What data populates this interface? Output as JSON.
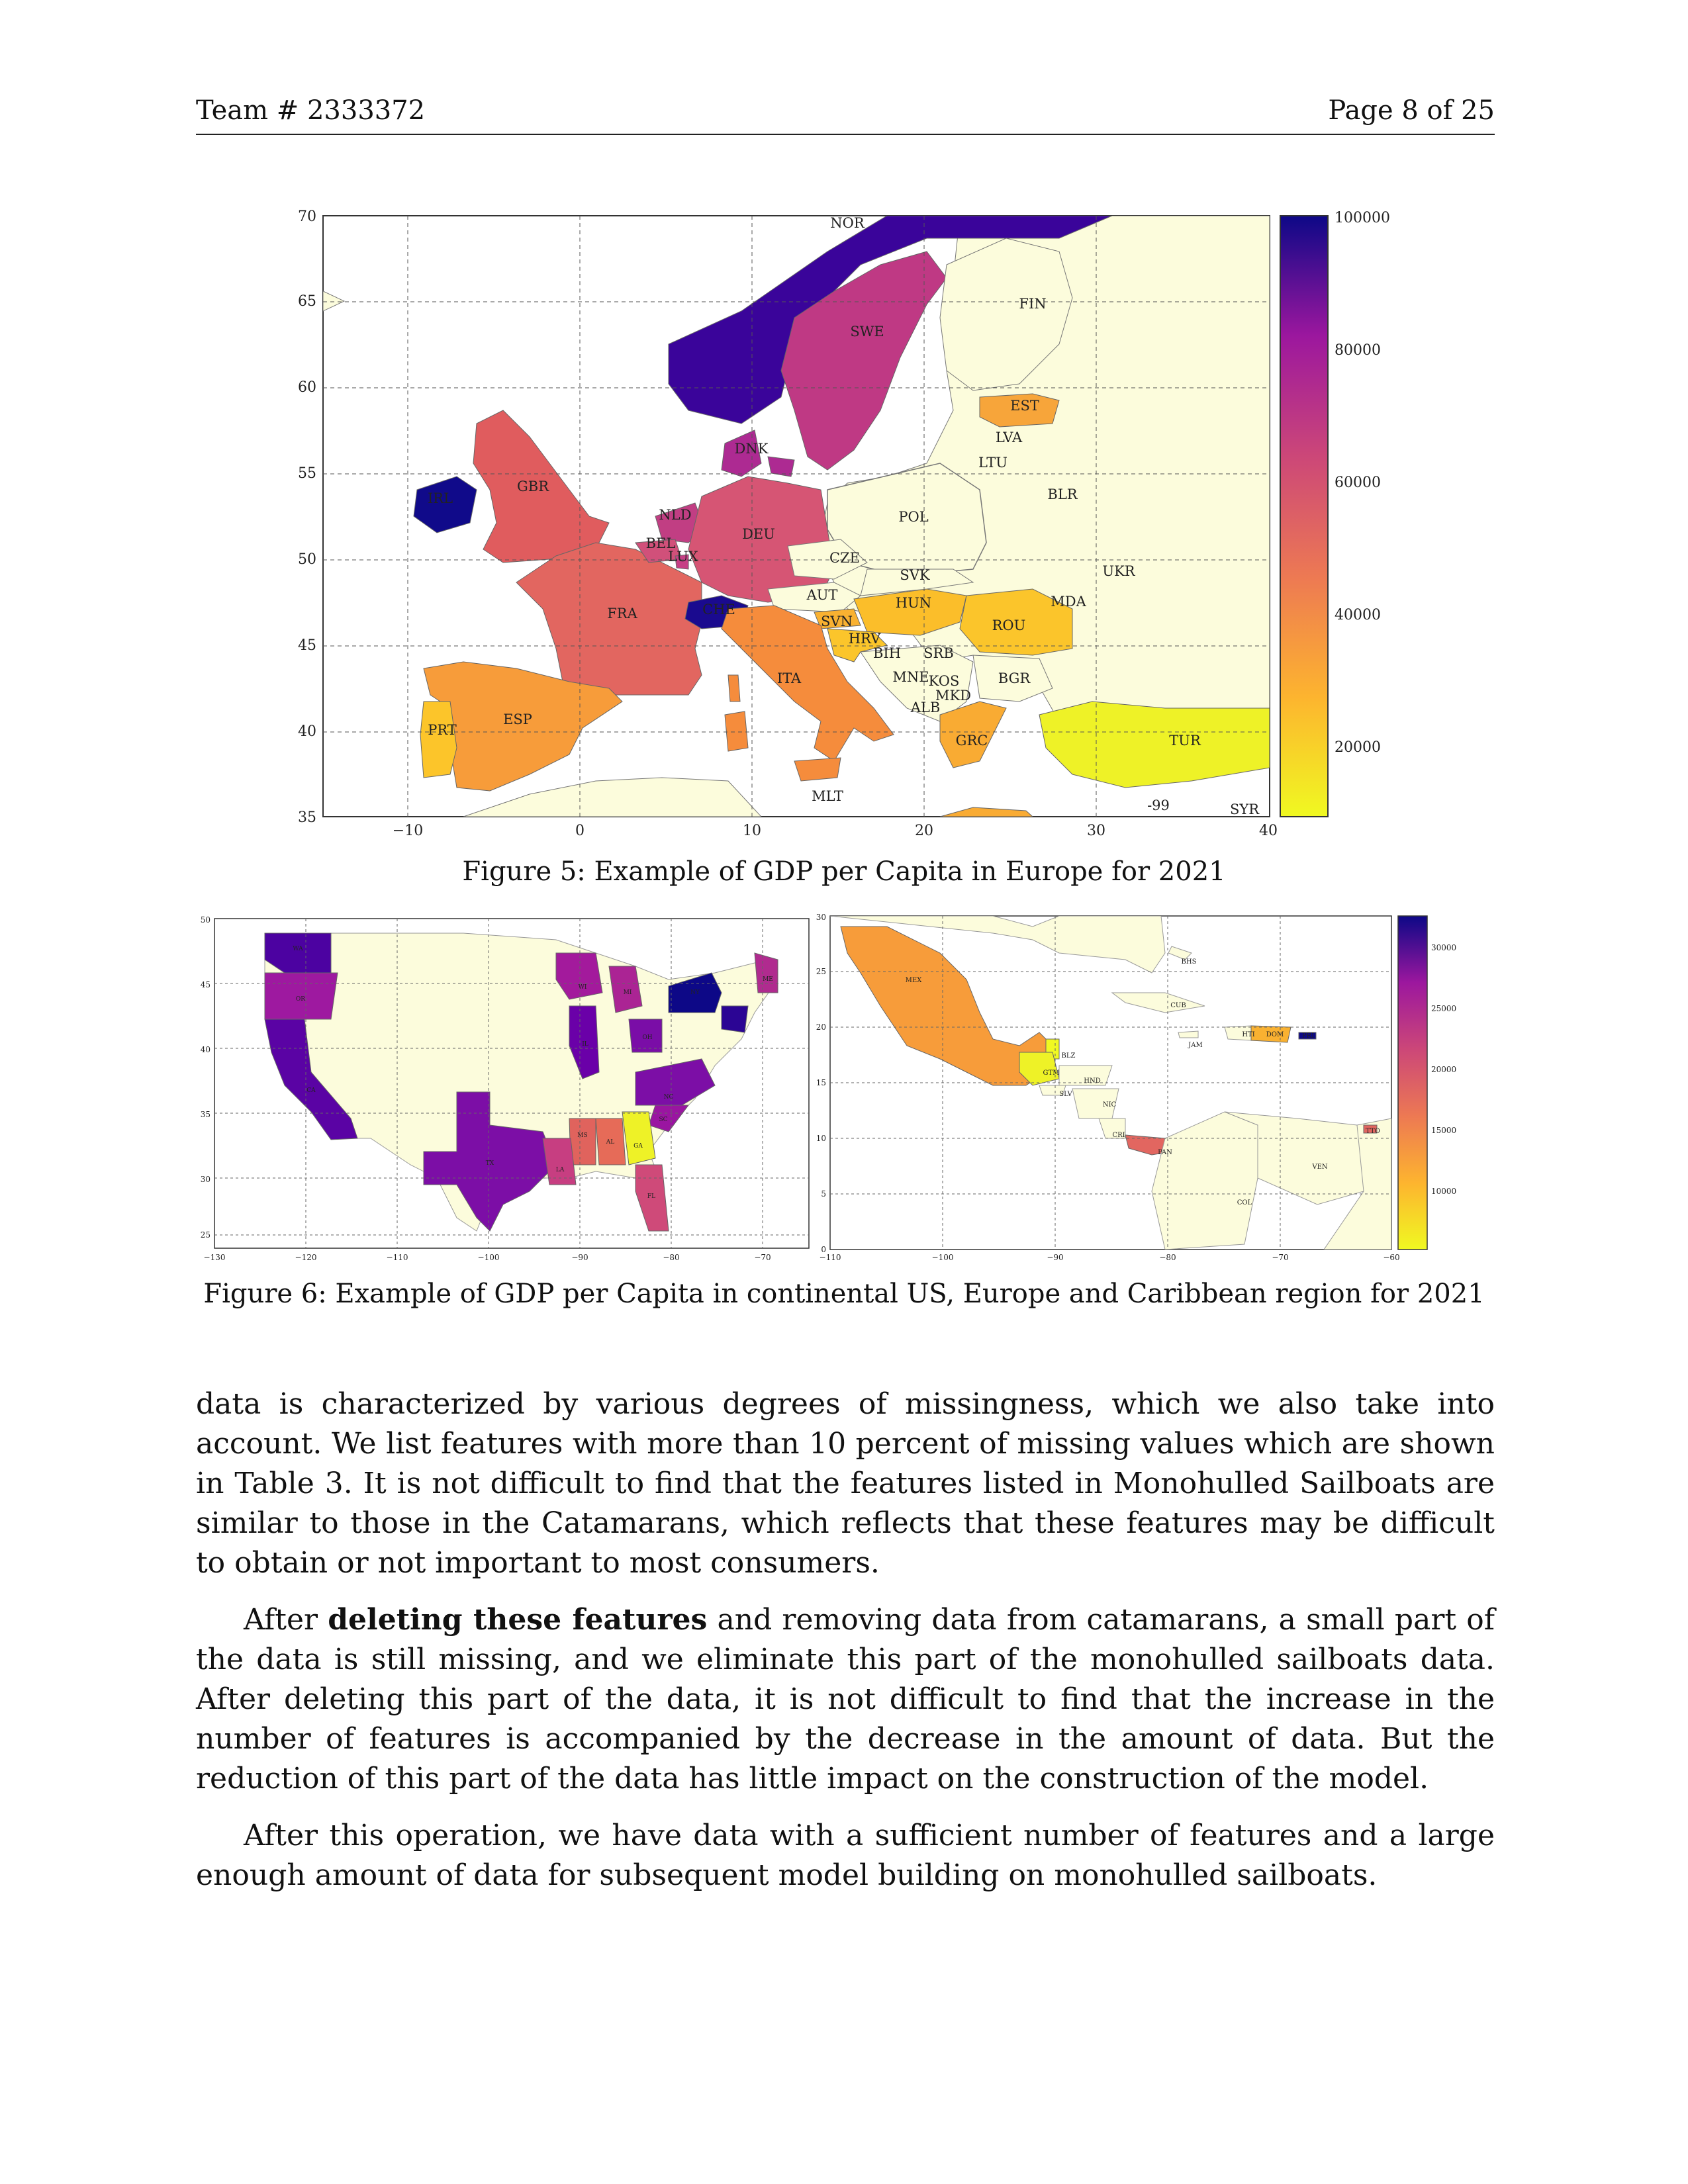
{
  "header": {
    "team": "Team # 2333372",
    "page": "Page 8 of 25"
  },
  "figure5": {
    "caption": "Figure 5: Example of GDP per Capita in Europe for 2021",
    "xticks": [
      "−10",
      "0",
      "10",
      "20",
      "30",
      "40"
    ],
    "yticks": [
      "35",
      "40",
      "45",
      "50",
      "55",
      "60",
      "65",
      "70"
    ],
    "colorbar_ticks": [
      "20000",
      "40000",
      "60000",
      "80000",
      "100000"
    ],
    "labels": [
      "NOR",
      "FIN",
      "SWE",
      "EST",
      "LVA",
      "LTU",
      "DNK",
      "BLR",
      "IRL",
      "GBR",
      "NLD",
      "DEU",
      "POL",
      "BEL",
      "LUX",
      "CZE",
      "UKR",
      "SVK",
      "AUT",
      "MDA",
      "FRA",
      "CHE",
      "HUN",
      "SVN",
      "ROU",
      "HRV",
      "BIH",
      "SRB",
      "MNE",
      "KOS",
      "MKD",
      "ITA",
      "BGR",
      "ALB",
      "ESP",
      "PRT",
      "GRC",
      "TUR",
      "MLT",
      "-99",
      "SYR"
    ]
  },
  "chart_data": [
    {
      "type": "heatmap",
      "title": "",
      "colorbar": {
        "min": 10000,
        "max": 100000,
        "ticks": [
          20000,
          40000,
          60000,
          80000,
          100000
        ]
      },
      "xlim": [
        -15,
        40
      ],
      "ylim": [
        35,
        70
      ],
      "categories": [
        "NOR",
        "FIN",
        "SWE",
        "EST",
        "LVA",
        "LTU",
        "DNK",
        "BLR",
        "IRL",
        "GBR",
        "NLD",
        "DEU",
        "POL",
        "BEL",
        "LUX",
        "CZE",
        "UKR",
        "SVK",
        "AUT",
        "MDA",
        "FRA",
        "CHE",
        "HUN",
        "SVN",
        "ROU",
        "HRV",
        "BIH",
        "SRB",
        "MNE",
        "KOS",
        "MKD",
        "ITA",
        "BGR",
        "ALB",
        "ESP",
        "PRT",
        "GRC",
        "TUR",
        "MLT",
        "SYR"
      ],
      "grid": true
    },
    {
      "type": "heatmap",
      "colorbar": {
        "min": 5000,
        "max": 33000,
        "ticks": [
          10000,
          15000,
          20000,
          25000,
          30000
        ]
      },
      "xlim": [
        -130,
        -60
      ],
      "ylim": [
        24,
        50
      ],
      "xticks": [
        "−130",
        "−120",
        "−110",
        "−100",
        "−90",
        "−80",
        "−70"
      ],
      "yticks": [
        "25",
        "30",
        "35",
        "40",
        "45",
        "50"
      ],
      "categories": [
        "WA",
        "OR",
        "CA",
        "TX",
        "WI",
        "MI",
        "IL",
        "OH",
        "NY",
        "ME",
        "NC",
        "SC",
        "GA",
        "AL",
        "MS",
        "LA",
        "FL"
      ],
      "grid": true
    },
    {
      "type": "heatmap",
      "xlim": [
        -110,
        -60
      ],
      "ylim": [
        0,
        30
      ],
      "xticks": [
        "−110",
        "−100",
        "−90",
        "−80",
        "−70",
        "−60"
      ],
      "yticks": [
        "0",
        "5",
        "10",
        "15",
        "20",
        "25",
        "30"
      ],
      "categories": [
        "MEX",
        "BHS",
        "CUB",
        "HTI",
        "DOM",
        "JAM",
        "BLZ",
        "GTM",
        "HND",
        "SLV",
        "NIC",
        "CRI",
        "PAN",
        "TTO",
        "VEN",
        "COL",
        "PRI"
      ],
      "grid": true
    }
  ],
  "figure6": {
    "caption": "Figure 6: Example of GDP per Capita in continental US, Europe and Caribbean region for 2021",
    "us_xticks": [
      "−130",
      "−120",
      "−110",
      "−100",
      "−90",
      "−80",
      "−70"
    ],
    "us_yticks": [
      "25",
      "30",
      "35",
      "40",
      "45",
      "50"
    ],
    "car_xticks": [
      "−110",
      "−100",
      "−90",
      "−80",
      "−70",
      "−60"
    ],
    "car_yticks": [
      "0",
      "5",
      "10",
      "15",
      "20",
      "25",
      "30"
    ],
    "colorbar_ticks": [
      "10000",
      "15000",
      "20000",
      "25000",
      "30000"
    ]
  },
  "body": {
    "p1": "data is characterized by various degrees of missingness, which we also take into account. We list features with more than 10 percent of missing values which are shown in Table 3. It is not difficult to find that the features listed in Monohulled Sailboats are similar to those in the Catamarans, which reflects that these features may be difficult to obtain or not important to most consumers.",
    "p2_pre": "After ",
    "p2_bold": "deleting these features",
    "p2_post": " and removing data from catamarans, a small part of the data is still missing, and we eliminate this part of the monohulled sailboats data. After deleting this part of the data, it is not difficult to find that the increase in the number of features is accompanied by the decrease in the amount of data. But the reduction of this part of the data has little impact on the construction of the model.",
    "p3": "After this operation, we have data with a sufficient number of features and a large enough amount of data for subsequent model building on monohulled sailboats."
  }
}
